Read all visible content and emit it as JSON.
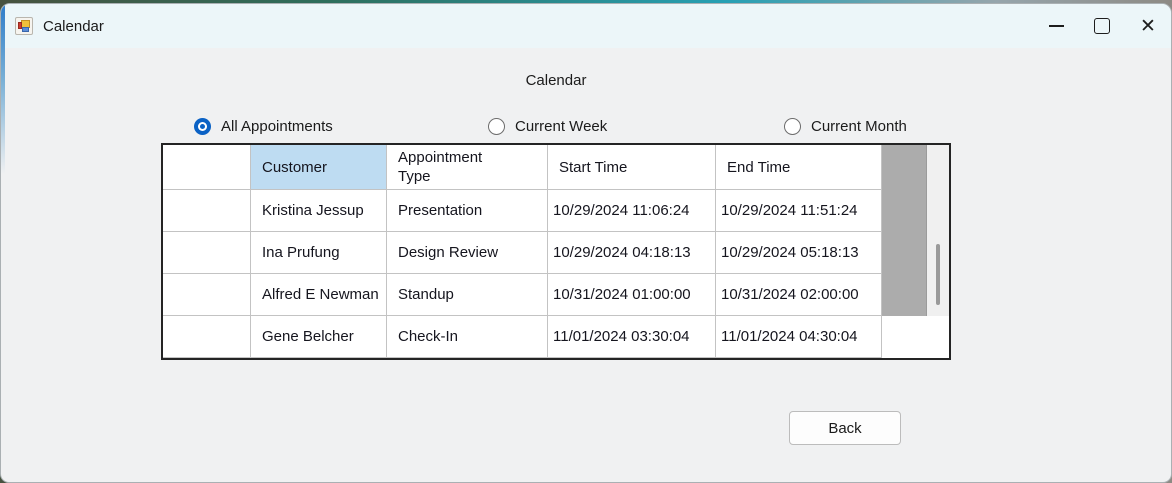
{
  "window": {
    "title": "Calendar",
    "icons": {
      "app": "winforms-app-icon",
      "minimize": "minimize-line",
      "maximize": "maximize-square",
      "close": "✕"
    }
  },
  "heading": "Calendar",
  "filters": [
    {
      "label": "All Appointments",
      "selected": true
    },
    {
      "label": "Current Week",
      "selected": false
    },
    {
      "label": "Current Month",
      "selected": false
    }
  ],
  "table": {
    "columns": [
      "Customer",
      "Appointment Type",
      "Start Time",
      "End Time"
    ],
    "rows": [
      {
        "customer": "Kristina Jessup",
        "type": "Presentation",
        "start": "10/29/2024 11:06:24",
        "end": "10/29/2024 11:51:24"
      },
      {
        "customer": "Ina Prufung",
        "type": "Design Review",
        "start": "10/29/2024 04:18:13",
        "end": "10/29/2024 05:18:13"
      },
      {
        "customer": "Alfred E Newman",
        "type": "Standup",
        "start": "10/31/2024 01:00:00",
        "end": "10/31/2024 02:00:00"
      },
      {
        "customer": "Gene Belcher",
        "type": "Check-In",
        "start": "11/01/2024 03:30:04",
        "end": "11/01/2024 04:30:04"
      }
    ]
  },
  "buttons": {
    "back": "Back"
  },
  "colors": {
    "header_selected": "#bedcf2",
    "radio_accent": "#0b62c5",
    "grid_filler": "#acacac",
    "titlebar_bg": "#ecf6f9",
    "client_bg": "#f0f1f2",
    "grid_border": "#242424"
  }
}
